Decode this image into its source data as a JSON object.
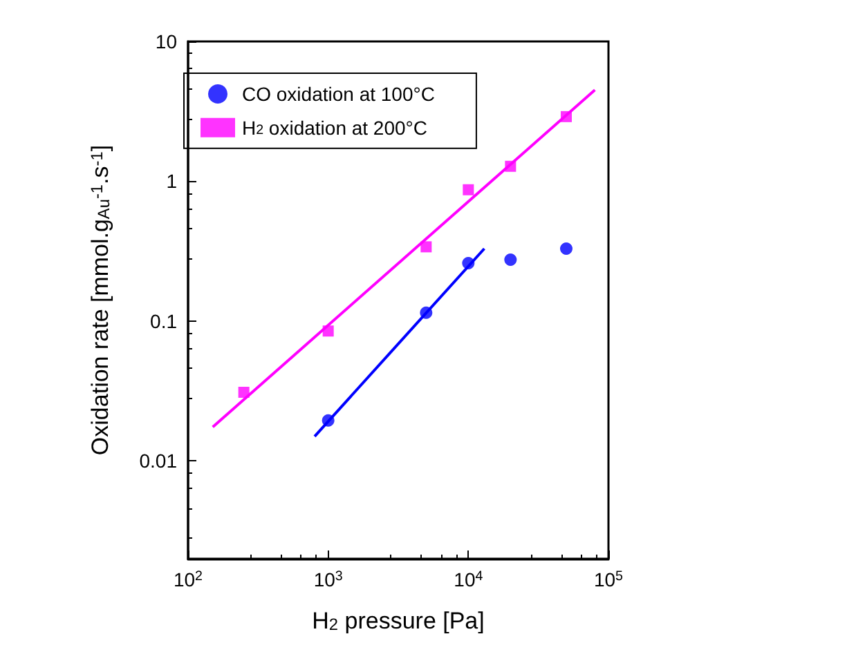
{
  "chart_data": {
    "type": "scatter",
    "xlabel": "H$_{2}$ pressure [Pa]",
    "ylabel": "Oxidation rate [mmol.g$_{Au}$$^{-1}$.s$^{-1}$]",
    "log": "xy",
    "xlim": [
      100,
      100000
    ],
    "ylim": [
      0.002,
      10
    ],
    "xticks": [
      {
        "value": 100,
        "label": "10$^{2}$"
      },
      {
        "value": 1000,
        "label": "10$^{3}$"
      },
      {
        "value": 10000,
        "label": "10$^{4}$"
      },
      {
        "value": 100000,
        "label": "10$^{5}$"
      }
    ],
    "yticks": [
      0.01,
      0.1,
      1,
      10
    ],
    "grid": false,
    "legend": "top left",
    "series": [
      {
        "name": "CO oxidation at 100°C",
        "color": "#0000ff",
        "marker": "circle",
        "x": [
          1000,
          5000,
          10000,
          20000,
          50000
        ],
        "values": [
          0.0195,
          0.115,
          0.26,
          0.275,
          0.33
        ]
      },
      {
        "name": "H$_{2}$ oxidation at 200°C",
        "color": "#ff00ff",
        "marker": "square",
        "x": [
          250,
          1000,
          5000,
          10000,
          20000,
          50000
        ],
        "values": [
          0.031,
          0.085,
          0.34,
          0.87,
          1.28,
          2.9
        ]
      },
      {
        "type": "line",
        "color": "#0000ff",
        "marker": "none",
        "line_style": "solid",
        "x": [
          800,
          13000
        ],
        "values": [
          0.015,
          0.33
        ]
      },
      {
        "type": "line",
        "color": "#ff00ff",
        "marker": "none",
        "line_style": "solid",
        "x": [
          150,
          80000
        ],
        "values": [
          0.0175,
          4.5
        ]
      }
    ]
  }
}
